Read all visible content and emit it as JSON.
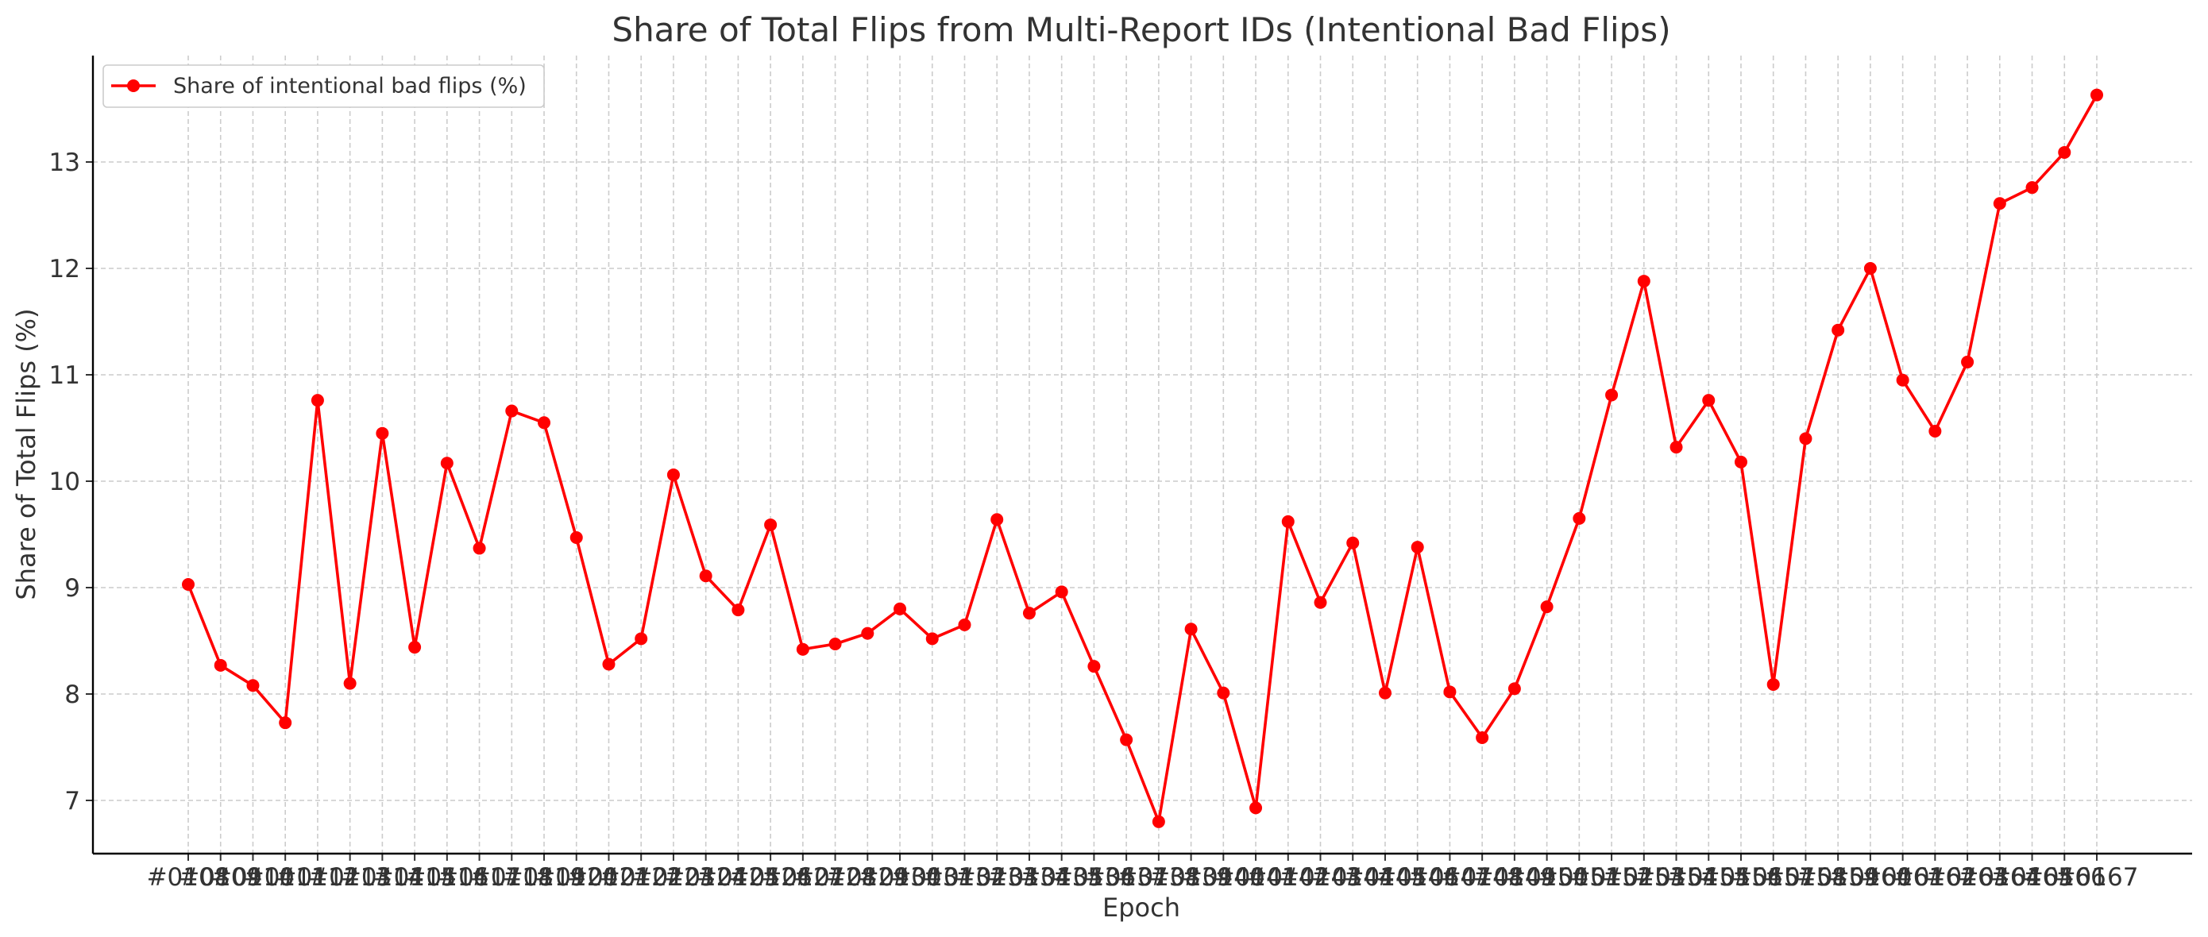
{
  "chart_data": {
    "type": "line",
    "title": "Share of Total Flips from Multi-Report IDs (Intentional Bad Flips)",
    "xlabel": "Epoch",
    "ylabel": "Share of Total Flips (%)",
    "x": [
      "#0108",
      "#0109",
      "#0110",
      "#0111",
      "#0112",
      "#0113",
      "#0114",
      "#0115",
      "#0116",
      "#0117",
      "#0118",
      "#0119",
      "#0120",
      "#0121",
      "#0122",
      "#0123",
      "#0124",
      "#0125",
      "#0126",
      "#0127",
      "#0128",
      "#0129",
      "#0130",
      "#0131",
      "#0132",
      "#0133",
      "#0134",
      "#0135",
      "#0136",
      "#0137",
      "#0138",
      "#0139",
      "#0140",
      "#0141",
      "#0142",
      "#0143",
      "#0144",
      "#0145",
      "#0146",
      "#0147",
      "#0148",
      "#0149",
      "#0150",
      "#0151",
      "#0152",
      "#0153",
      "#0154",
      "#0155",
      "#0156",
      "#0157",
      "#0158",
      "#0159",
      "#0160",
      "#0161",
      "#0162",
      "#0163",
      "#0164",
      "#0165",
      "#0166",
      "#0167"
    ],
    "series": [
      {
        "name": "Share of intentional bad flips (%)",
        "color": "#ff0000",
        "values": [
          9.03,
          8.27,
          8.08,
          7.73,
          10.76,
          8.1,
          10.45,
          8.44,
          10.17,
          9.37,
          10.66,
          10.55,
          9.47,
          8.28,
          8.52,
          10.06,
          9.11,
          8.79,
          9.59,
          8.42,
          8.47,
          8.57,
          8.8,
          8.52,
          8.65,
          9.64,
          8.76,
          8.96,
          8.26,
          7.57,
          6.8,
          8.61,
          8.01,
          6.93,
          9.62,
          8.86,
          9.42,
          8.01,
          9.38,
          8.02,
          7.59,
          8.05,
          8.82,
          9.65,
          10.81,
          11.88,
          10.32,
          10.76,
          10.18,
          8.09,
          10.4,
          11.42,
          12.0,
          10.95,
          10.47,
          11.12,
          12.61,
          12.76,
          13.09,
          13.63
        ]
      }
    ],
    "ylim": [
      6.5,
      14.0
    ],
    "yticks": [
      7,
      8,
      9,
      10,
      11,
      12,
      13
    ],
    "grid": true,
    "legend_position": "top-left"
  }
}
